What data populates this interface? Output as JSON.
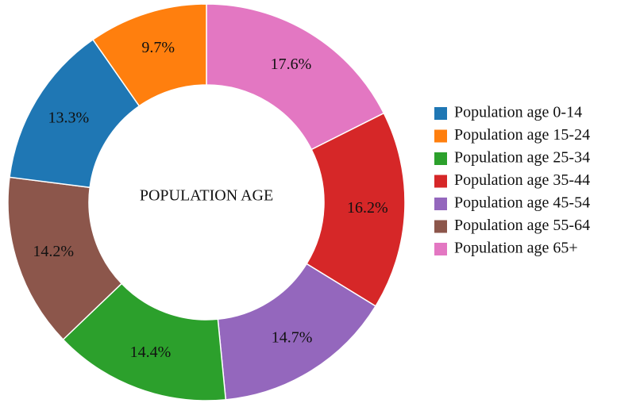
{
  "chart_data": {
    "type": "donut",
    "title": "POPULATION AGE",
    "values": [
      17.6,
      16.2,
      14.7,
      14.4,
      14.2,
      13.3,
      9.7
    ],
    "value_labels": [
      "17.6%",
      "16.2%",
      "14.7%",
      "14.4%",
      "14.2%",
      "13.3%",
      "9.7%"
    ],
    "colors": [
      "#e377c2",
      "#d62728",
      "#9467bd",
      "#2ca02c",
      "#8c564b",
      "#1f77b4",
      "#ff7f0e"
    ],
    "legend": [
      {
        "label": "Population age 0-14",
        "color": "#1f77b4"
      },
      {
        "label": "Population age 15-24",
        "color": "#ff7f0e"
      },
      {
        "label": "Population age 25-34",
        "color": "#2ca02c"
      },
      {
        "label": "Population age 35-44",
        "color": "#d62728"
      },
      {
        "label": "Population age 45-54",
        "color": "#9467bd"
      },
      {
        "label": "Population age 55-64",
        "color": "#8c564b"
      },
      {
        "label": "Population age 65+",
        "color": "#e377c2"
      }
    ]
  }
}
